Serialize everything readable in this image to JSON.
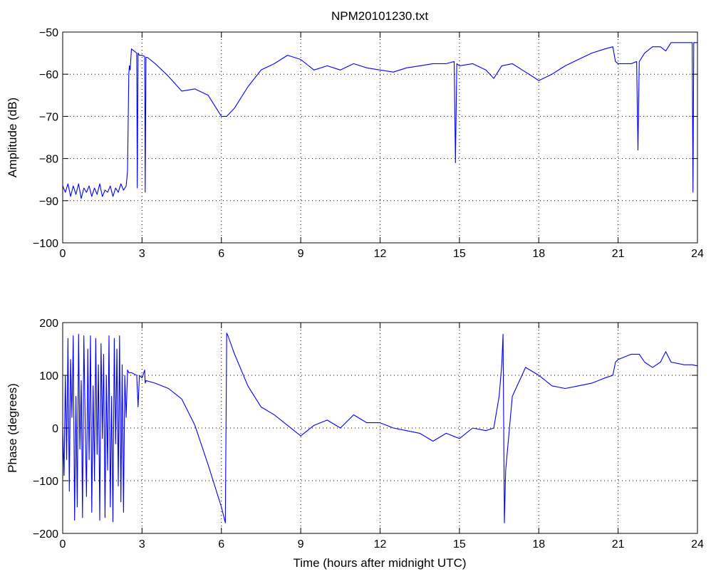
{
  "figure": {
    "title": "NPM20101230.txt",
    "line_color": "#0000ff"
  },
  "chart_data": [
    {
      "type": "line",
      "title": "NPM20101230.txt",
      "xlabel": "",
      "ylabel": "Amplitude (dB)",
      "xlim": [
        0,
        24
      ],
      "ylim": [
        -100,
        -50
      ],
      "xticks": [
        0,
        3,
        6,
        9,
        12,
        15,
        18,
        21,
        24
      ],
      "yticks": [
        -100,
        -90,
        -80,
        -70,
        -60,
        -50
      ],
      "xtick_labels": [
        "0",
        "3",
        "6",
        "9",
        "12",
        "15",
        "18",
        "21",
        "24"
      ],
      "ytick_labels": [
        "−100",
        "−90",
        "−80",
        "−70",
        "−60",
        "−50"
      ],
      "grid": true,
      "series": [
        {
          "x": [
            0.0,
            0.1,
            0.2,
            0.3,
            0.4,
            0.5,
            0.6,
            0.7,
            0.8,
            0.9,
            1.0,
            1.1,
            1.2,
            1.3,
            1.4,
            1.5,
            1.6,
            1.7,
            1.8,
            1.9,
            2.0,
            2.1,
            2.2,
            2.3,
            2.4,
            2.45,
            2.5,
            2.52,
            2.55,
            2.6,
            2.7,
            2.8,
            2.82,
            2.85,
            2.9,
            3.0,
            3.1,
            3.12,
            3.15,
            3.2,
            3.5,
            4.0,
            4.5,
            5.0,
            5.5,
            6.0,
            6.2,
            6.5,
            7.0,
            7.5,
            8.0,
            8.5,
            9.0,
            9.5,
            10.0,
            10.5,
            11.0,
            11.5,
            12.0,
            12.5,
            13.0,
            13.5,
            14.0,
            14.5,
            14.8,
            14.85,
            14.9,
            15.0,
            15.5,
            16.0,
            16.3,
            16.6,
            17.0,
            17.5,
            18.0,
            18.5,
            19.0,
            19.5,
            20.0,
            20.5,
            20.8,
            20.9,
            21.0,
            21.5,
            21.7,
            21.75,
            21.8,
            22.0,
            22.3,
            22.6,
            22.8,
            23.0,
            23.5,
            23.8,
            23.83,
            23.86,
            24.0
          ],
          "y": [
            -86.5,
            -88.0,
            -86.0,
            -89.0,
            -86.5,
            -88.5,
            -86.0,
            -89.5,
            -87.0,
            -88.0,
            -86.5,
            -89.0,
            -87.0,
            -88.5,
            -86.0,
            -89.0,
            -87.5,
            -88.0,
            -86.5,
            -89.0,
            -87.0,
            -88.0,
            -86.0,
            -87.5,
            -86.5,
            -83.0,
            -60.0,
            -58.0,
            -59.0,
            -54.0,
            -54.5,
            -55.0,
            -87.0,
            -55.0,
            -55.5,
            -55.5,
            -55.8,
            -88.0,
            -56.0,
            -56.0,
            -57.5,
            -60.5,
            -64.0,
            -63.5,
            -65.0,
            -70.0,
            -70.0,
            -68.0,
            -63.0,
            -59.0,
            -57.5,
            -55.5,
            -56.5,
            -59.0,
            -58.0,
            -59.0,
            -57.5,
            -58.5,
            -59.0,
            -59.5,
            -58.5,
            -58.0,
            -57.5,
            -57.5,
            -57.0,
            -81.0,
            -57.5,
            -58.0,
            -57.5,
            -59.0,
            -61.0,
            -58.0,
            -57.5,
            -59.5,
            -61.5,
            -60.0,
            -58.0,
            -56.5,
            -55.0,
            -54.0,
            -53.5,
            -57.0,
            -57.5,
            -57.5,
            -57.0,
            -78.0,
            -57.0,
            -55.0,
            -53.5,
            -53.5,
            -54.5,
            -52.5,
            -52.5,
            -52.5,
            -88.0,
            -52.5,
            -52.5
          ]
        }
      ]
    },
    {
      "type": "line",
      "title": "",
      "xlabel": "Time (hours after midnight UTC)",
      "ylabel": "Phase (degrees)",
      "xlim": [
        0,
        24
      ],
      "ylim": [
        -200,
        200
      ],
      "xticks": [
        0,
        3,
        6,
        9,
        12,
        15,
        18,
        21,
        24
      ],
      "yticks": [
        -200,
        -100,
        0,
        100,
        200
      ],
      "xtick_labels": [
        "0",
        "3",
        "6",
        "9",
        "12",
        "15",
        "18",
        "21",
        "24"
      ],
      "ytick_labels": [
        "−200",
        "−100",
        "0",
        "100",
        "200"
      ],
      "grid": true,
      "series": [
        {
          "x": [
            0.0,
            0.05,
            0.1,
            0.15,
            0.2,
            0.25,
            0.3,
            0.35,
            0.4,
            0.45,
            0.5,
            0.55,
            0.6,
            0.65,
            0.7,
            0.75,
            0.8,
            0.85,
            0.9,
            0.95,
            1.0,
            1.05,
            1.1,
            1.15,
            1.2,
            1.25,
            1.3,
            1.35,
            1.4,
            1.45,
            1.5,
            1.55,
            1.6,
            1.65,
            1.7,
            1.75,
            1.8,
            1.85,
            1.9,
            1.95,
            2.0,
            2.05,
            2.1,
            2.15,
            2.2,
            2.25,
            2.3,
            2.35,
            2.4,
            2.45,
            2.5,
            2.6,
            2.8,
            2.85,
            2.9,
            3.0,
            3.1,
            3.12,
            3.15,
            3.5,
            4.0,
            4.5,
            5.0,
            5.5,
            6.0,
            6.15,
            6.2,
            6.25,
            6.5,
            7.0,
            7.5,
            8.0,
            8.5,
            9.0,
            9.5,
            10.0,
            10.5,
            11.0,
            11.5,
            12.0,
            12.5,
            13.0,
            13.5,
            14.0,
            14.5,
            15.0,
            15.5,
            16.0,
            16.3,
            16.5,
            16.6,
            16.65,
            16.7,
            16.75,
            17.0,
            17.5,
            18.0,
            18.5,
            19.0,
            19.5,
            20.0,
            20.5,
            20.8,
            20.9,
            21.0,
            21.5,
            21.8,
            22.0,
            22.3,
            22.6,
            22.8,
            23.0,
            23.5,
            23.8,
            24.0
          ],
          "y": [
            0,
            -90,
            100,
            -60,
            170,
            -120,
            130,
            20,
            175,
            -175,
            60,
            -150,
            178,
            -40,
            90,
            -170,
            175,
            10,
            -130,
            150,
            -60,
            175,
            -160,
            80,
            -100,
            170,
            -50,
            120,
            -175,
            160,
            -20,
            140,
            -170,
            100,
            -80,
            175,
            -150,
            60,
            -178,
            170,
            -30,
            150,
            -110,
            175,
            -140,
            120,
            -160,
            100,
            20,
            110,
            105,
            105,
            100,
            40,
            100,
            95,
            110,
            85,
            90,
            85,
            75,
            55,
            5,
            -70,
            -150,
            -180,
            180,
            175,
            140,
            80,
            40,
            25,
            5,
            -15,
            5,
            15,
            0,
            25,
            10,
            10,
            0,
            -5,
            -10,
            -25,
            -10,
            -20,
            0,
            -5,
            0,
            60,
            120,
            178,
            -180,
            -80,
            60,
            115,
            100,
            80,
            75,
            80,
            85,
            95,
            100,
            125,
            130,
            140,
            140,
            125,
            115,
            125,
            145,
            125,
            120,
            120,
            118
          ]
        }
      ]
    }
  ]
}
